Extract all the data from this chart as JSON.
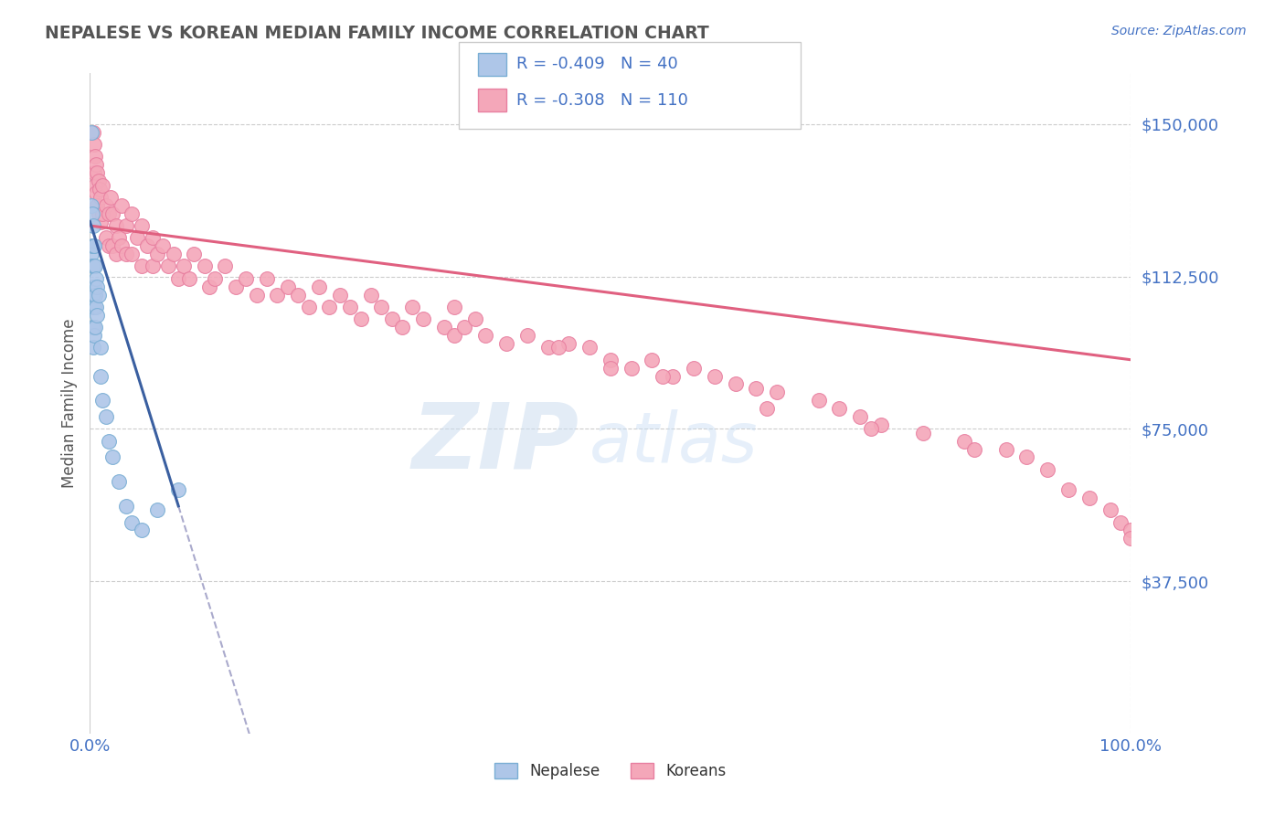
{
  "title": "NEPALESE VS KOREAN MEDIAN FAMILY INCOME CORRELATION CHART",
  "title_color": "#555555",
  "source_text": "Source: ZipAtlas.com",
  "ylabel": "Median Family Income",
  "x_min": 0.0,
  "x_max": 1.0,
  "y_min": 0,
  "y_max": 162500,
  "yticks": [
    0,
    37500,
    75000,
    112500,
    150000
  ],
  "ytick_labels": [
    "",
    "$37,500",
    "$75,000",
    "$112,500",
    "$150,000"
  ],
  "xtick_labels": [
    "0.0%",
    "100.0%"
  ],
  "grid_color": "#cccccc",
  "background_color": "#ffffff",
  "nepalese_color": "#aec6e8",
  "korean_color": "#f4a7b9",
  "nepalese_edge": "#7aaed4",
  "korean_edge": "#e87fa0",
  "trend_nepalese_color": "#3a5fa0",
  "trend_korean_color": "#e06080",
  "trend_dashed_color": "#aaaacc",
  "legend_R1": "-0.409",
  "legend_N1": "40",
  "legend_R2": "-0.308",
  "legend_N2": "110",
  "legend_label1": "Nepalese",
  "legend_label2": "Koreans",
  "nepalese_x": [
    0.001,
    0.001,
    0.001,
    0.002,
    0.002,
    0.002,
    0.002,
    0.002,
    0.003,
    0.003,
    0.003,
    0.003,
    0.003,
    0.003,
    0.003,
    0.004,
    0.004,
    0.004,
    0.004,
    0.004,
    0.005,
    0.005,
    0.005,
    0.006,
    0.006,
    0.007,
    0.007,
    0.008,
    0.01,
    0.01,
    0.012,
    0.015,
    0.018,
    0.022,
    0.028,
    0.035,
    0.04,
    0.05,
    0.065,
    0.085
  ],
  "nepalese_y": [
    148000,
    130000,
    118000,
    128000,
    120000,
    115000,
    108000,
    100000,
    125000,
    120000,
    115000,
    110000,
    105000,
    100000,
    95000,
    120000,
    115000,
    110000,
    105000,
    98000,
    115000,
    108000,
    100000,
    112000,
    105000,
    110000,
    103000,
    108000,
    95000,
    88000,
    82000,
    78000,
    72000,
    68000,
    62000,
    56000,
    52000,
    50000,
    55000,
    60000
  ],
  "korean_x": [
    0.003,
    0.004,
    0.004,
    0.005,
    0.005,
    0.006,
    0.006,
    0.007,
    0.007,
    0.008,
    0.008,
    0.009,
    0.01,
    0.01,
    0.012,
    0.012,
    0.015,
    0.015,
    0.018,
    0.018,
    0.02,
    0.022,
    0.022,
    0.025,
    0.025,
    0.028,
    0.03,
    0.03,
    0.035,
    0.035,
    0.04,
    0.04,
    0.045,
    0.05,
    0.05,
    0.055,
    0.06,
    0.06,
    0.065,
    0.07,
    0.075,
    0.08,
    0.085,
    0.09,
    0.095,
    0.1,
    0.11,
    0.115,
    0.12,
    0.13,
    0.14,
    0.15,
    0.16,
    0.17,
    0.18,
    0.19,
    0.2,
    0.21,
    0.22,
    0.23,
    0.24,
    0.25,
    0.26,
    0.27,
    0.28,
    0.29,
    0.3,
    0.31,
    0.32,
    0.34,
    0.35,
    0.36,
    0.37,
    0.38,
    0.4,
    0.42,
    0.44,
    0.46,
    0.48,
    0.5,
    0.52,
    0.54,
    0.56,
    0.58,
    0.6,
    0.62,
    0.64,
    0.66,
    0.7,
    0.72,
    0.74,
    0.76,
    0.8,
    0.84,
    0.88,
    0.9,
    0.92,
    0.94,
    0.96,
    0.98,
    0.99,
    1.0,
    1.0,
    0.5,
    0.55,
    0.35,
    0.45,
    0.65,
    0.75,
    0.85
  ],
  "korean_y": [
    148000,
    145000,
    138000,
    142000,
    135000,
    140000,
    133000,
    138000,
    130000,
    136000,
    128000,
    134000,
    132000,
    126000,
    135000,
    128000,
    130000,
    122000,
    128000,
    120000,
    132000,
    128000,
    120000,
    125000,
    118000,
    122000,
    130000,
    120000,
    125000,
    118000,
    128000,
    118000,
    122000,
    125000,
    115000,
    120000,
    122000,
    115000,
    118000,
    120000,
    115000,
    118000,
    112000,
    115000,
    112000,
    118000,
    115000,
    110000,
    112000,
    115000,
    110000,
    112000,
    108000,
    112000,
    108000,
    110000,
    108000,
    105000,
    110000,
    105000,
    108000,
    105000,
    102000,
    108000,
    105000,
    102000,
    100000,
    105000,
    102000,
    100000,
    98000,
    100000,
    102000,
    98000,
    96000,
    98000,
    95000,
    96000,
    95000,
    92000,
    90000,
    92000,
    88000,
    90000,
    88000,
    86000,
    85000,
    84000,
    82000,
    80000,
    78000,
    76000,
    74000,
    72000,
    70000,
    68000,
    65000,
    60000,
    58000,
    55000,
    52000,
    50000,
    48000,
    90000,
    88000,
    105000,
    95000,
    80000,
    75000,
    70000
  ]
}
